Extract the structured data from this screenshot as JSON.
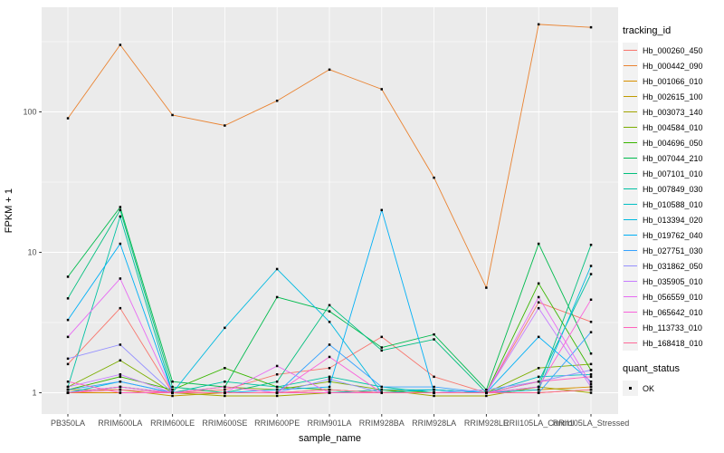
{
  "chart_data": {
    "type": "line",
    "title": "",
    "xlabel": "sample_name",
    "ylabel": "FPKM + 1",
    "y_scale": "log10",
    "y_ticks": [
      1,
      10,
      100
    ],
    "ylim": [
      0.7,
      560
    ],
    "grid": "major-and-minor-on",
    "legend_position": "right",
    "point_shape": "small-black-square",
    "categories": [
      "PB350LA",
      "RRIM600LA",
      "RRIM600LE",
      "RRIM600SE",
      "RRIM600PE",
      "RRIM901LA",
      "RRIM928BA",
      "RRIM928LA",
      "RRIM928LE",
      "RRII105LA_Control",
      "RRII105LA_Stressed"
    ],
    "series": [
      {
        "name": "Hb_000260_450",
        "color": "#F8766D",
        "values": [
          1.6,
          4,
          1,
          1.05,
          1.35,
          1.5,
          2.5,
          1.3,
          1,
          4.4,
          3.2
        ]
      },
      {
        "name": "Hb_000442_090",
        "color": "#EA8331",
        "values": [
          90,
          300,
          95,
          80,
          120,
          200,
          145,
          34,
          5.6,
          420,
          400
        ]
      },
      {
        "name": "Hb_001066_010",
        "color": "#D89000",
        "values": [
          1,
          1,
          1,
          1,
          1,
          1,
          1,
          1,
          1,
          1.05,
          1.1
        ]
      },
      {
        "name": "Hb_002615_100",
        "color": "#C09B00",
        "values": [
          1.05,
          1.05,
          0.95,
          1,
          1,
          1.05,
          1,
          1,
          1,
          1,
          1.05
        ]
      },
      {
        "name": "Hb_003073_140",
        "color": "#A3A500",
        "values": [
          1,
          1.1,
          1,
          0.95,
          0.95,
          1,
          1.05,
          0.95,
          0.95,
          1.1,
          1
        ]
      },
      {
        "name": "Hb_004584_010",
        "color": "#7CAE00",
        "values": [
          1.1,
          1.7,
          1,
          1.1,
          1.05,
          1.2,
          1.05,
          1,
          1,
          1.5,
          1.6
        ]
      },
      {
        "name": "Hb_004696_050",
        "color": "#39B600",
        "values": [
          1.05,
          1.3,
          1.05,
          1.5,
          1.1,
          1.05,
          1,
          1.05,
          1,
          6,
          1.45
        ]
      },
      {
        "name": "Hb_007044_210",
        "color": "#00BB4E",
        "values": [
          6.7,
          21,
          1.2,
          1.1,
          4.8,
          3.8,
          2.1,
          2.6,
          1.05,
          11.5,
          1.9
        ]
      },
      {
        "name": "Hb_007101_010",
        "color": "#00BF7D",
        "values": [
          4.7,
          20,
          1.1,
          1,
          1.2,
          4.2,
          2,
          2.4,
          1,
          1.1,
          11.3
        ]
      },
      {
        "name": "Hb_007849_030",
        "color": "#00C1A3",
        "values": [
          1.1,
          18,
          1,
          1.2,
          1.1,
          1.3,
          1.1,
          1,
          1,
          1.2,
          7
        ]
      },
      {
        "name": "Hb_010588_010",
        "color": "#00BFC4",
        "values": [
          1,
          1.1,
          1,
          1,
          1,
          1,
          1.05,
          1.05,
          1,
          1.3,
          1.35
        ]
      },
      {
        "name": "Hb_013394_020",
        "color": "#00BAE0",
        "values": [
          1,
          1.2,
          1,
          2.9,
          7.6,
          3.2,
          1,
          1.05,
          1,
          1.05,
          8
        ]
      },
      {
        "name": "Hb_019762_040",
        "color": "#00B0F6",
        "values": [
          3.3,
          11.5,
          1,
          1,
          1.05,
          1.1,
          20,
          1,
          1,
          2.5,
          1.2
        ]
      },
      {
        "name": "Hb_027751_030",
        "color": "#35A2FF",
        "values": [
          1.05,
          1.2,
          1,
          1,
          1,
          2.2,
          1.1,
          1.1,
          1,
          1,
          2.7
        ]
      },
      {
        "name": "Hb_031862_050",
        "color": "#9590FF",
        "values": [
          1.75,
          2.2,
          1,
          1,
          1,
          1.25,
          1,
          1,
          1.05,
          1.2,
          1.45
        ]
      },
      {
        "name": "Hb_035905_010",
        "color": "#C77CFF",
        "values": [
          1.1,
          1.35,
          1,
          1,
          1,
          1,
          1,
          1,
          1,
          4,
          1.1
        ]
      },
      {
        "name": "Hb_056559_010",
        "color": "#E76BF3",
        "values": [
          2.5,
          6.5,
          1,
          1,
          1.55,
          1,
          1,
          1,
          1,
          4.8,
          1.15
        ]
      },
      {
        "name": "Hb_065642_010",
        "color": "#FA62DB",
        "values": [
          1,
          1.1,
          1,
          1.1,
          1,
          1.8,
          1,
          1,
          1,
          1.1,
          4.6
        ]
      },
      {
        "name": "Hb_113733_010",
        "color": "#FF62BC",
        "values": [
          1.2,
          1,
          1,
          1,
          1,
          1,
          1,
          1,
          1,
          1.2,
          1.3
        ]
      },
      {
        "name": "Hb_168418_010",
        "color": "#FF6A98",
        "values": [
          1,
          1.05,
          1,
          1,
          1,
          1.05,
          1,
          1,
          1,
          1,
          1.05
        ]
      }
    ]
  },
  "axes": {
    "x_title": "sample_name",
    "y_title": "FPKM + 1",
    "y_tick_labels": [
      "1",
      "10",
      "100"
    ]
  },
  "legend": {
    "tracking_title": "tracking_id",
    "quant_title": "quant_status",
    "quant_items": [
      {
        "label": "OK"
      }
    ]
  },
  "colors": {
    "panel_bg": "#EBEBEB",
    "grid": "#FFFFFF",
    "tick_mark": "#333333",
    "tick_text": "#4D4D4D",
    "point": "#000000",
    "legend_key_bg": "#F2F2F2"
  }
}
